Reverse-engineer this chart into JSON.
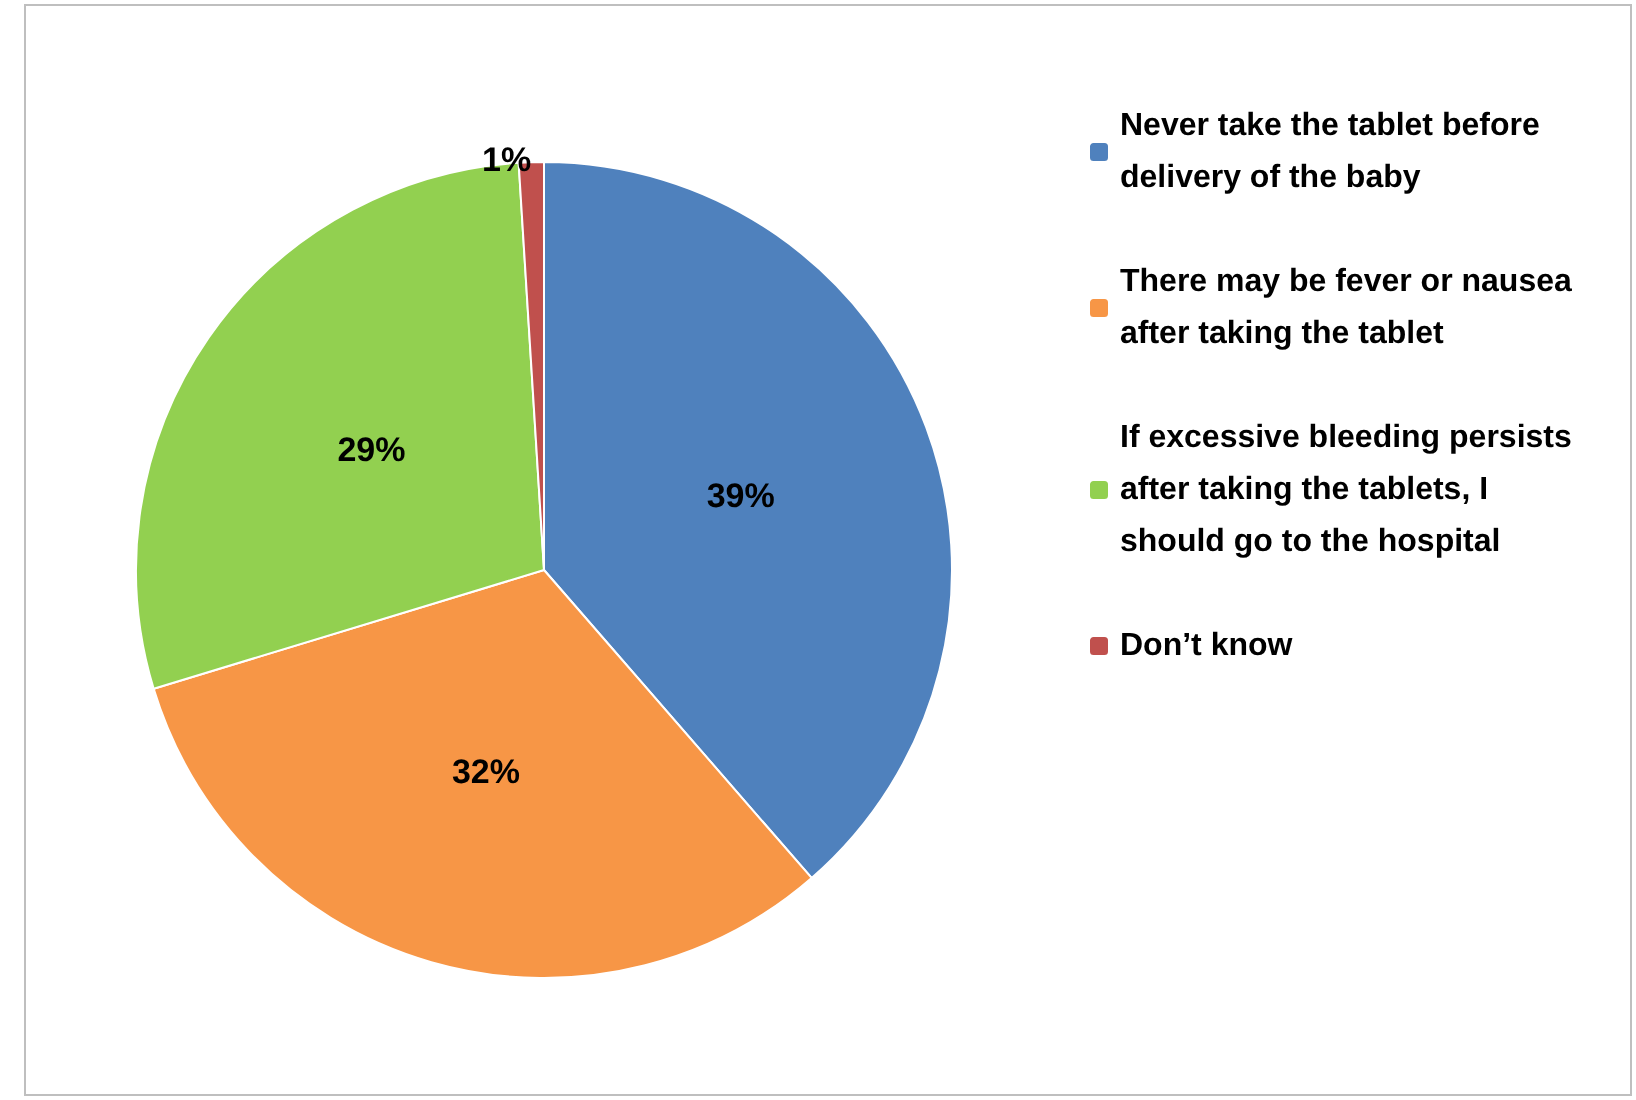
{
  "chart_data": {
    "type": "pie",
    "categories": [
      "Never take the tablet before delivery of the baby",
      "There may be fever or nausea after taking the tablet",
      "If excessive bleeding persists after taking the tablets, I should go to the hospital",
      "Don’t know"
    ],
    "values": [
      39,
      32,
      29,
      1
    ],
    "colors": [
      "#4f81bd",
      "#f79646",
      "#92d050",
      "#c0504d"
    ],
    "value_labels": [
      "39%",
      "32%",
      "29%",
      "1%"
    ],
    "legend": "right"
  }
}
